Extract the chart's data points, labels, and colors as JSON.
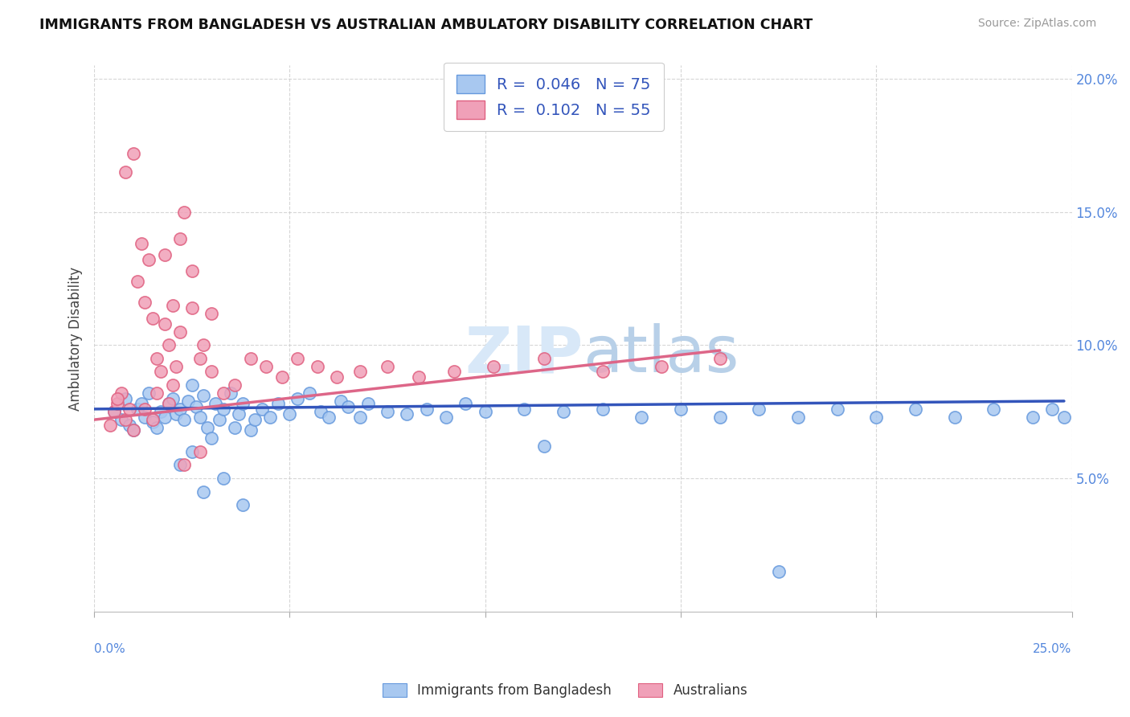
{
  "title": "IMMIGRANTS FROM BANGLADESH VS AUSTRALIAN AMBULATORY DISABILITY CORRELATION CHART",
  "source": "Source: ZipAtlas.com",
  "ylabel": "Ambulatory Disability",
  "legend_blue_rv": "0.046",
  "legend_blue_nv": "75",
  "legend_pink_rv": "0.102",
  "legend_pink_nv": "55",
  "legend_label_blue": "Immigrants from Bangladesh",
  "legend_label_pink": "Australians",
  "xlim": [
    0.0,
    0.25
  ],
  "ylim": [
    0.0,
    0.205
  ],
  "yticks": [
    0.05,
    0.1,
    0.15,
    0.2
  ],
  "ytick_labels": [
    "5.0%",
    "10.0%",
    "15.0%",
    "20.0%"
  ],
  "blue_color": "#A8C8F0",
  "pink_color": "#F0A0B8",
  "blue_edge_color": "#6699DD",
  "pink_edge_color": "#E06080",
  "blue_line_color": "#3355BB",
  "pink_line_color": "#DD6688",
  "watermark_color": "#D8E8F8",
  "background_color": "#FFFFFF",
  "grid_color": "#CCCCCC",
  "blue_scatter_x": [
    0.005,
    0.007,
    0.008,
    0.009,
    0.01,
    0.011,
    0.012,
    0.013,
    0.014,
    0.015,
    0.016,
    0.017,
    0.018,
    0.019,
    0.02,
    0.021,
    0.022,
    0.023,
    0.024,
    0.025,
    0.026,
    0.027,
    0.028,
    0.029,
    0.03,
    0.031,
    0.032,
    0.033,
    0.035,
    0.036,
    0.037,
    0.038,
    0.04,
    0.041,
    0.043,
    0.045,
    0.047,
    0.05,
    0.052,
    0.055,
    0.058,
    0.06,
    0.063,
    0.065,
    0.068,
    0.07,
    0.075,
    0.08,
    0.085,
    0.09,
    0.095,
    0.1,
    0.11,
    0.12,
    0.13,
    0.14,
    0.15,
    0.16,
    0.17,
    0.18,
    0.19,
    0.2,
    0.21,
    0.22,
    0.23,
    0.24,
    0.245,
    0.248,
    0.115,
    0.038,
    0.025,
    0.022,
    0.028,
    0.033,
    0.175
  ],
  "blue_scatter_y": [
    0.075,
    0.072,
    0.08,
    0.07,
    0.068,
    0.076,
    0.078,
    0.073,
    0.082,
    0.071,
    0.069,
    0.075,
    0.073,
    0.078,
    0.08,
    0.074,
    0.076,
    0.072,
    0.079,
    0.085,
    0.077,
    0.073,
    0.081,
    0.069,
    0.065,
    0.078,
    0.072,
    0.076,
    0.082,
    0.069,
    0.074,
    0.078,
    0.068,
    0.072,
    0.076,
    0.073,
    0.078,
    0.074,
    0.08,
    0.082,
    0.075,
    0.073,
    0.079,
    0.077,
    0.073,
    0.078,
    0.075,
    0.074,
    0.076,
    0.073,
    0.078,
    0.075,
    0.076,
    0.075,
    0.076,
    0.073,
    0.076,
    0.073,
    0.076,
    0.073,
    0.076,
    0.073,
    0.076,
    0.073,
    0.076,
    0.073,
    0.076,
    0.073,
    0.062,
    0.04,
    0.06,
    0.055,
    0.045,
    0.05,
    0.015
  ],
  "pink_scatter_x": [
    0.004,
    0.005,
    0.006,
    0.007,
    0.008,
    0.009,
    0.01,
    0.011,
    0.012,
    0.013,
    0.014,
    0.015,
    0.016,
    0.017,
    0.018,
    0.019,
    0.02,
    0.021,
    0.022,
    0.023,
    0.025,
    0.027,
    0.03,
    0.033,
    0.036,
    0.04,
    0.044,
    0.048,
    0.052,
    0.057,
    0.062,
    0.068,
    0.075,
    0.083,
    0.092,
    0.102,
    0.115,
    0.13,
    0.145,
    0.16,
    0.018,
    0.022,
    0.028,
    0.015,
    0.02,
    0.025,
    0.03,
    0.013,
    0.016,
    0.019,
    0.023,
    0.027,
    0.008,
    0.01,
    0.006
  ],
  "pink_scatter_y": [
    0.07,
    0.075,
    0.078,
    0.082,
    0.072,
    0.076,
    0.068,
    0.124,
    0.138,
    0.076,
    0.132,
    0.072,
    0.082,
    0.09,
    0.134,
    0.078,
    0.085,
    0.092,
    0.14,
    0.15,
    0.128,
    0.095,
    0.09,
    0.082,
    0.085,
    0.095,
    0.092,
    0.088,
    0.095,
    0.092,
    0.088,
    0.09,
    0.092,
    0.088,
    0.09,
    0.092,
    0.095,
    0.09,
    0.092,
    0.095,
    0.108,
    0.105,
    0.1,
    0.11,
    0.115,
    0.114,
    0.112,
    0.116,
    0.095,
    0.1,
    0.055,
    0.06,
    0.165,
    0.172,
    0.08
  ],
  "blue_trend_x": [
    0.0,
    0.248
  ],
  "blue_trend_y": [
    0.076,
    0.079
  ],
  "pink_trend_x": [
    0.0,
    0.16
  ],
  "pink_trend_y": [
    0.072,
    0.098
  ]
}
